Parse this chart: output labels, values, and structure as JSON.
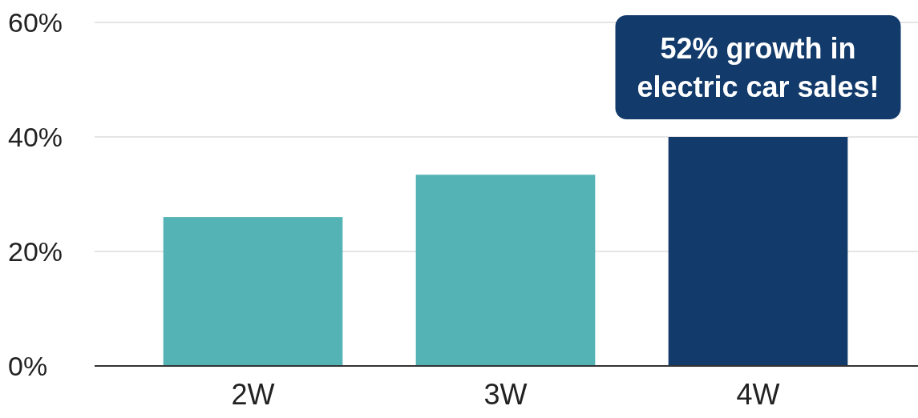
{
  "chart_data": {
    "type": "bar",
    "categories": [
      "2W",
      "3W",
      "4W"
    ],
    "values": [
      26,
      33.4,
      40
    ],
    "colors": [
      "#54b3b5",
      "#54b3b5",
      "#123a6b"
    ],
    "ylim": [
      0,
      60
    ],
    "yticks": [
      {
        "value": 0,
        "label": "0%"
      },
      {
        "value": 20,
        "label": "20%"
      },
      {
        "value": 40,
        "label": "40%"
      },
      {
        "value": 60,
        "label": "60%"
      }
    ],
    "grid": "y",
    "annotations": [
      {
        "text": "52% growth in electric car sales!",
        "x": "4W",
        "y": 40
      }
    ]
  }
}
